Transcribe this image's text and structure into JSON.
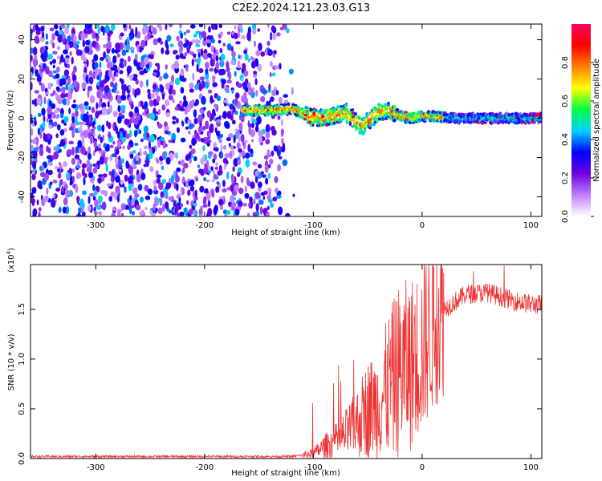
{
  "title": "C2E2.2024.121.23.03.G13",
  "chart_data": [
    {
      "type": "heatmap",
      "xlabel": "Height of straight line (km)",
      "ylabel": "Frequency (Hz)",
      "xlim": [
        -360,
        110
      ],
      "ylim": [
        -50,
        48
      ],
      "x_ticks": [
        -300,
        -200,
        -100,
        0,
        100
      ],
      "y_ticks": [
        -40,
        -20,
        0,
        20,
        40
      ],
      "noise_region_x": [
        -360,
        -115
      ],
      "ridge_start_x": -165,
      "ridge_center": [
        [
          -165,
          4
        ],
        [
          -140,
          4
        ],
        [
          -120,
          5
        ],
        [
          -105,
          1
        ],
        [
          -90,
          0
        ],
        [
          -70,
          3
        ],
        [
          -55,
          -4
        ],
        [
          -40,
          3
        ],
        [
          -30,
          4
        ],
        [
          -20,
          1
        ],
        [
          -10,
          0
        ],
        [
          0,
          1
        ],
        [
          10,
          1
        ],
        [
          30,
          0
        ],
        [
          60,
          0
        ],
        [
          110,
          0
        ]
      ],
      "colorbar": {
        "label": "Normalized spectral amplitude",
        "range": [
          0,
          1
        ],
        "ticks": [
          "0.0",
          "0.2",
          "0.4",
          "0.6",
          "0.8"
        ],
        "colors": [
          "#ffffff",
          "#c080ff",
          "#7000e0",
          "#0000ff",
          "#00d0ff",
          "#00ff40",
          "#ffff00",
          "#ff8000",
          "#ff0000",
          "#ff0060"
        ]
      }
    },
    {
      "type": "line",
      "xlabel": "Height of straight line (km)",
      "ylabel": "SNR (10 * v/v)",
      "multiplier": "(x10",
      "multiplier_exp": "4",
      "multiplier_close": ")",
      "xlim": [
        -360,
        110
      ],
      "ylim": [
        0,
        1.95
      ],
      "x_ticks": [
        -300,
        -200,
        -100,
        0,
        100
      ],
      "y_ticks": [
        "0.0",
        "0.5",
        "1.0",
        "1.5"
      ],
      "color": "#ee3333",
      "series_envelope": [
        [
          -360,
          0.02
        ],
        [
          -200,
          0.02
        ],
        [
          -120,
          0.02
        ],
        [
          -100,
          0.05
        ],
        [
          -90,
          0.12
        ],
        [
          -75,
          0.2
        ],
        [
          -60,
          0.35
        ],
        [
          -50,
          0.5
        ],
        [
          -40,
          0.55
        ],
        [
          -30,
          0.75
        ],
        [
          -20,
          0.9
        ],
        [
          -10,
          0.95
        ],
        [
          0,
          1.1
        ],
        [
          10,
          1.35
        ],
        [
          20,
          1.5
        ],
        [
          40,
          1.65
        ],
        [
          60,
          1.67
        ],
        [
          80,
          1.6
        ],
        [
          100,
          1.55
        ],
        [
          110,
          1.55
        ]
      ]
    }
  ]
}
